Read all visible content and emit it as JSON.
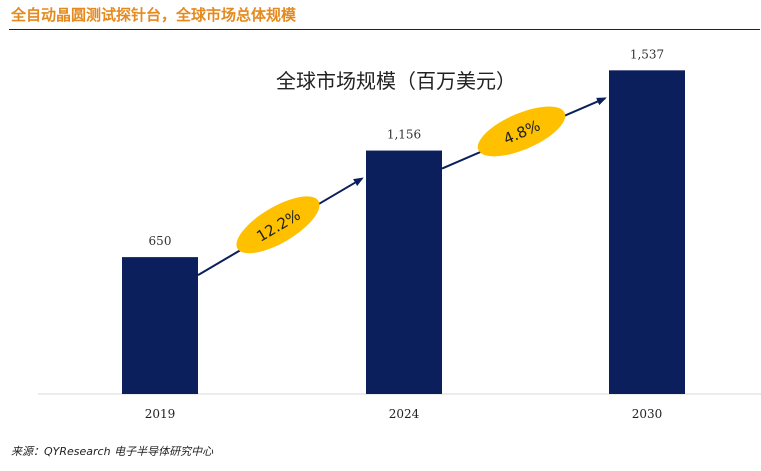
{
  "page": {
    "header_title": "全自动晶圆测试探针台，全球市场总体规模",
    "source": "来源：QYResearch 电子半导体研究中心"
  },
  "colors": {
    "header_accent": "#e48a1e",
    "bar": "#0b1f5c",
    "arrow": "#0b1f5c",
    "growth_ellipse": "#ffc000"
  },
  "chart_data": {
    "type": "bar",
    "title": "全球市场规模（百万美元）",
    "categories": [
      "2019",
      "2024",
      "2030"
    ],
    "values": [
      650,
      1156,
      1537
    ],
    "value_labels": [
      "650",
      "1,156",
      "1,537"
    ],
    "ylim": [
      0,
      1700
    ],
    "grid": false,
    "xlabel": "",
    "ylabel": "",
    "growth_annotations": [
      {
        "from": "2019",
        "to": "2024",
        "label": "12.2%"
      },
      {
        "from": "2024",
        "to": "2030",
        "label": "4.8%"
      }
    ]
  }
}
